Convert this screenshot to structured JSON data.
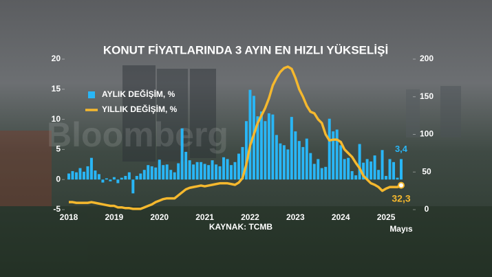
{
  "chart_data": {
    "type": "combo",
    "title": "KONUT FİYATLARINDA 3 AYIN EN HIZLI YÜKSELİŞİ",
    "source": "KAYNAK: TCMB",
    "watermark": "Bloomberg",
    "categories": [
      "2018",
      null,
      null,
      null,
      null,
      null,
      null,
      null,
      null,
      null,
      null,
      null,
      "2019",
      null,
      null,
      null,
      null,
      null,
      null,
      null,
      null,
      null,
      null,
      null,
      "2020",
      null,
      null,
      null,
      null,
      null,
      null,
      null,
      null,
      null,
      null,
      null,
      "2021",
      null,
      null,
      null,
      null,
      null,
      null,
      null,
      null,
      null,
      null,
      null,
      "2022",
      null,
      null,
      null,
      null,
      null,
      null,
      null,
      null,
      null,
      null,
      null,
      "2023",
      null,
      null,
      null,
      null,
      null,
      null,
      null,
      null,
      null,
      null,
      null,
      "2024",
      null,
      null,
      null,
      null,
      null,
      null,
      null,
      null,
      null,
      null,
      null,
      "2025",
      null,
      null,
      null,
      "Mayıs"
    ],
    "series": [
      {
        "name": "AYLIK DEĞİŞİM, %",
        "type": "bar",
        "color": "#29b6f6",
        "values": [
          1.0,
          1.4,
          1.2,
          1.9,
          1.3,
          2.2,
          3.6,
          1.5,
          0.9,
          -0.5,
          0.2,
          -0.3,
          0.4,
          -0.6,
          0.3,
          0.6,
          1.2,
          -2.3,
          0.6,
          1.0,
          1.6,
          2.4,
          2.2,
          2.0,
          3.3,
          2.4,
          2.5,
          1.6,
          1.2,
          2.7,
          8.5,
          4.6,
          3.2,
          2.5,
          2.9,
          2.9,
          2.6,
          2.4,
          3.2,
          2.5,
          2.2,
          3.7,
          3.4,
          2.4,
          2.9,
          4.3,
          5.4,
          9.7,
          14.9,
          13.9,
          10.5,
          11.3,
          9.7,
          11.0,
          10.8,
          7.4,
          6.0,
          5.7,
          5.0,
          10.4,
          8.0,
          6.4,
          5.4,
          6.8,
          4.4,
          2.6,
          3.4,
          1.9,
          2.1,
          10.1,
          8.0,
          8.3,
          5.7,
          3.4,
          3.6,
          1.4,
          0.7,
          5.9,
          2.8,
          3.4,
          3.0,
          4.0,
          1.6,
          4.9,
          0.6,
          3.4,
          2.9,
          0.3,
          3.4
        ],
        "value_labels": [
          null,
          null,
          null,
          null,
          null,
          null,
          null,
          null,
          null,
          null,
          null,
          null,
          null,
          null,
          null,
          null,
          null,
          null,
          null,
          null,
          null,
          null,
          null,
          null,
          null,
          null,
          null,
          null,
          null,
          null,
          null,
          null,
          null,
          null,
          null,
          null,
          null,
          null,
          null,
          null,
          null,
          null,
          null,
          null,
          null,
          null,
          null,
          null,
          null,
          null,
          null,
          null,
          null,
          null,
          null,
          null,
          null,
          null,
          null,
          null,
          null,
          null,
          null,
          null,
          null,
          null,
          null,
          null,
          null,
          null,
          null,
          null,
          null,
          null,
          null,
          null,
          null,
          null,
          null,
          null,
          null,
          null,
          null,
          null,
          null,
          null,
          null,
          null,
          "3,4"
        ]
      },
      {
        "name": "YILLIK DEĞİŞİM, %",
        "type": "line",
        "axis": "y2",
        "color": "#f5b82e",
        "values": [
          10,
          10,
          9,
          9,
          9,
          9,
          10,
          9,
          8,
          7,
          6,
          5,
          5,
          3,
          3,
          2,
          2,
          1,
          1,
          1,
          3,
          5,
          7,
          10,
          12,
          14,
          15,
          15,
          15,
          19,
          23,
          27,
          29,
          30,
          31,
          32,
          31,
          32,
          33,
          34,
          35,
          35,
          35,
          34,
          33,
          36,
          42,
          60,
          85,
          100,
          115,
          125,
          135,
          148,
          165,
          175,
          183,
          188,
          190,
          187,
          175,
          160,
          150,
          138,
          130,
          128,
          120,
          115,
          100,
          92,
          93,
          93,
          90,
          80,
          75,
          70,
          62,
          55,
          45,
          40,
          35,
          33,
          30,
          25,
          28,
          30,
          30,
          30,
          32.3
        ],
        "value_labels": [
          null,
          null,
          null,
          null,
          null,
          null,
          null,
          null,
          null,
          null,
          null,
          null,
          null,
          null,
          null,
          null,
          null,
          null,
          null,
          null,
          null,
          null,
          null,
          null,
          null,
          null,
          null,
          null,
          null,
          null,
          null,
          null,
          null,
          null,
          null,
          null,
          null,
          null,
          null,
          null,
          null,
          null,
          null,
          null,
          null,
          null,
          null,
          null,
          null,
          null,
          null,
          null,
          null,
          null,
          null,
          null,
          null,
          null,
          null,
          null,
          null,
          null,
          null,
          null,
          null,
          null,
          null,
          null,
          null,
          null,
          null,
          null,
          null,
          null,
          null,
          null,
          null,
          null,
          null,
          null,
          null,
          null,
          null,
          null,
          null,
          null,
          null,
          null,
          "32,3"
        ]
      }
    ],
    "ylim": [
      -5,
      20
    ],
    "yticks": [
      -5,
      0,
      5,
      10,
      15,
      20
    ],
    "y2lim": [
      0,
      200
    ],
    "y2ticks": [
      0,
      50,
      100,
      150,
      200
    ]
  }
}
